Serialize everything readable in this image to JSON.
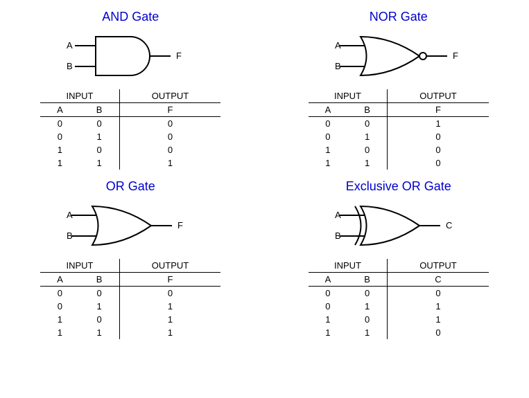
{
  "colors": {
    "title": "#0000cc",
    "stroke": "#000000",
    "background": "#ffffff"
  },
  "font": {
    "title_size": 18,
    "table_size": 13,
    "label_size": 13
  },
  "gates": [
    {
      "title": "AND Gate",
      "type": "and",
      "inputs": [
        "A",
        "B"
      ],
      "output": "F",
      "table": {
        "input_header": "INPUT",
        "output_header": "OUTPUT",
        "cols": [
          "A",
          "B",
          "F"
        ],
        "rows": [
          [
            "0",
            "0",
            "0"
          ],
          [
            "0",
            "1",
            "0"
          ],
          [
            "1",
            "0",
            "0"
          ],
          [
            "1",
            "1",
            "1"
          ]
        ]
      }
    },
    {
      "title": "NOR Gate",
      "type": "nor",
      "inputs": [
        "A",
        "B"
      ],
      "output": "F",
      "table": {
        "input_header": "INPUT",
        "output_header": "OUTPUT",
        "cols": [
          "A",
          "B",
          "F"
        ],
        "rows": [
          [
            "0",
            "0",
            "1"
          ],
          [
            "0",
            "1",
            "0"
          ],
          [
            "1",
            "0",
            "0"
          ],
          [
            "1",
            "1",
            "0"
          ]
        ]
      }
    },
    {
      "title": "OR Gate",
      "type": "or",
      "inputs": [
        "A",
        "B"
      ],
      "output": "F",
      "table": {
        "input_header": "INPUT",
        "output_header": "OUTPUT",
        "cols": [
          "A",
          "B",
          "F"
        ],
        "rows": [
          [
            "0",
            "0",
            "0"
          ],
          [
            "0",
            "1",
            "1"
          ],
          [
            "1",
            "0",
            "1"
          ],
          [
            "1",
            "1",
            "1"
          ]
        ]
      }
    },
    {
      "title": "Exclusive OR Gate",
      "type": "xor",
      "inputs": [
        "A",
        "B"
      ],
      "output": "C",
      "table": {
        "input_header": "INPUT",
        "output_header": "OUTPUT",
        "cols": [
          "A",
          "B",
          "C"
        ],
        "rows": [
          [
            "0",
            "0",
            "0"
          ],
          [
            "0",
            "1",
            "1"
          ],
          [
            "1",
            "0",
            "1"
          ],
          [
            "1",
            "1",
            "0"
          ]
        ]
      }
    }
  ]
}
